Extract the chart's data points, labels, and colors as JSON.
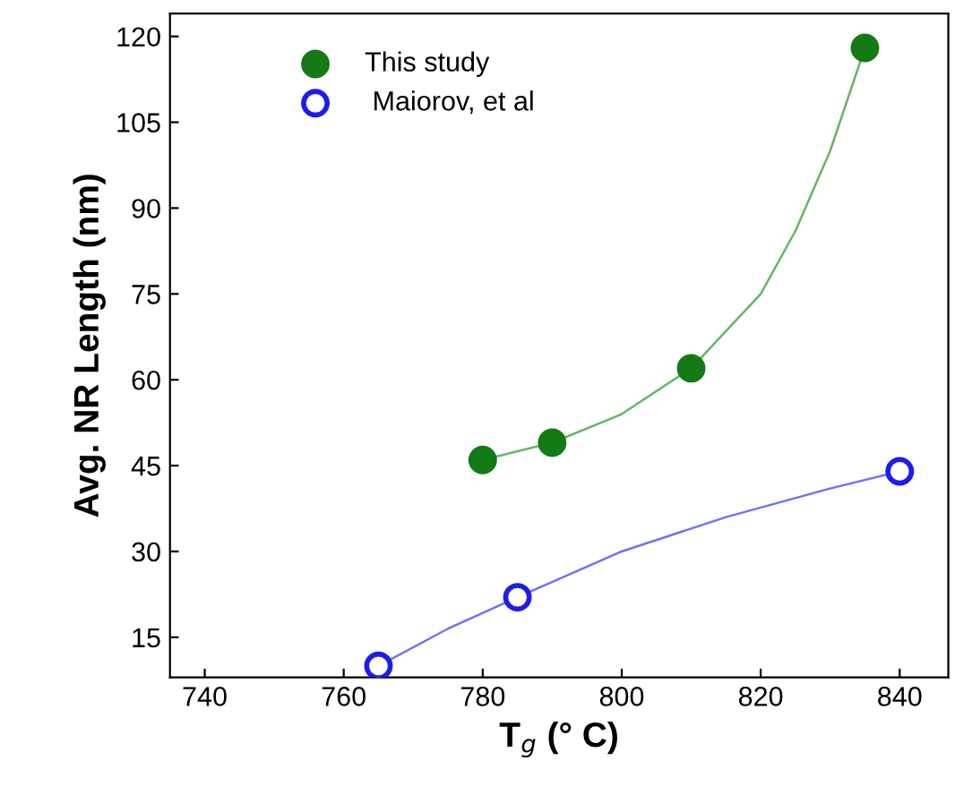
{
  "chart_data": {
    "type": "scatter",
    "xlabel": "T$_{g}$ (° C)",
    "ylabel": "Avg. NR Length (nm)",
    "xlim": [
      735,
      847
    ],
    "ylim": [
      8,
      124
    ],
    "xticks": [
      740,
      760,
      780,
      800,
      820,
      840
    ],
    "yticks": [
      15,
      30,
      45,
      60,
      75,
      90,
      105,
      120
    ],
    "grid": false,
    "legend": "top left",
    "series": [
      {
        "name": "This study",
        "color": "#157a15",
        "marker": "circle",
        "x": [
          780,
          790,
          810,
          835
        ],
        "values": [
          46,
          49,
          62,
          118
        ]
      },
      {
        "name": " Maiorov, et al",
        "color": "#1c1cf0",
        "marker": "circle",
        "x": [
          765,
          785,
          840
        ],
        "values": [
          10,
          22,
          44
        ]
      },
      {
        "color": "#63b863",
        "type": "line",
        "marker": "none",
        "x": [
          780,
          790,
          800,
          810,
          820,
          825,
          830,
          835
        ],
        "values": [
          46,
          49,
          54,
          62,
          75,
          86,
          100,
          118
        ]
      },
      {
        "color": "#7070ff",
        "type": "line",
        "marker": "none",
        "x": [
          765,
          775,
          785,
          800,
          815,
          830,
          840
        ],
        "values": [
          10,
          16.5,
          22,
          30,
          36,
          41,
          44
        ]
      }
    ]
  }
}
